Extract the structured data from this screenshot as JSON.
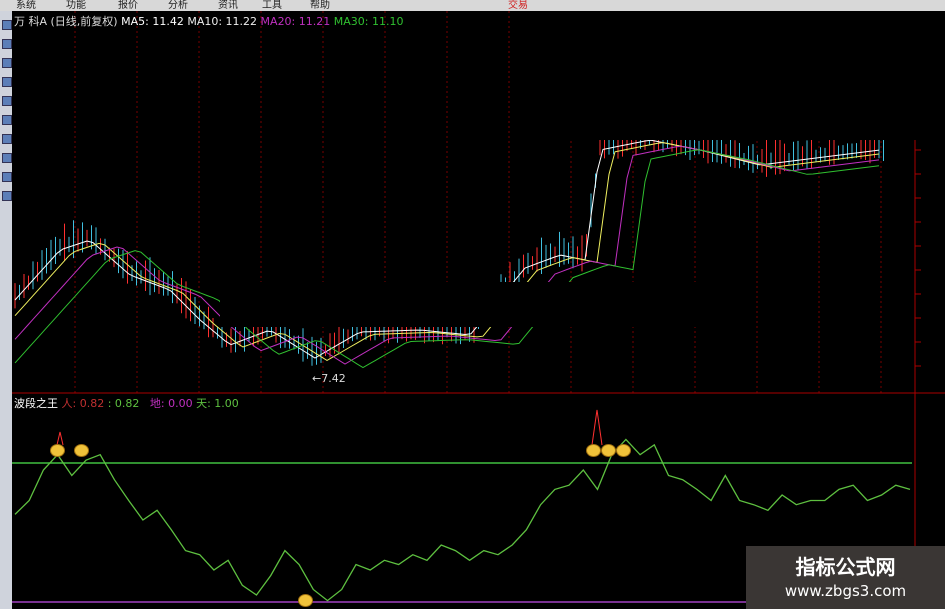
{
  "menu": [
    "系统",
    "功能",
    "报价",
    "分析",
    "资讯",
    "工具",
    "帮助"
  ],
  "menu_right": "交易",
  "main_header": {
    "title": "万 科A (日线,前复权)",
    "ma5": "MA5: 11.42",
    "ma10": "MA10: 11.22",
    "ma20": "MA20: 11.21",
    "ma30": "MA30: 11.10"
  },
  "low_label": "←7.42",
  "indicator": {
    "name": "波段之王",
    "ren_label": "人: 0.82",
    "value2": ": 0.82",
    "di_label": "地: 0.00",
    "tian_label": "天: 1.00"
  },
  "colors": {
    "ma5": "#ffffff",
    "ma10": "#f0f060",
    "ma20": "#c030c0",
    "ma30": "#30c030",
    "up": "#ff3030",
    "down": "#40c0e0",
    "osc": "#5ec040",
    "tian": "#40c040",
    "di": "#a040c0"
  },
  "chart_data": {
    "type": "line",
    "name": "波段之王",
    "levels": {
      "天": 1.0,
      "地": 0.0
    },
    "values": [
      0.63,
      0.73,
      0.95,
      1.06,
      0.91,
      1.02,
      1.06,
      0.88,
      0.73,
      0.59,
      0.66,
      0.52,
      0.37,
      0.34,
      0.23,
      0.3,
      0.12,
      0.05,
      0.19,
      0.37,
      0.27,
      0.09,
      0.01,
      0.09,
      0.27,
      0.23,
      0.3,
      0.27,
      0.34,
      0.3,
      0.41,
      0.37,
      0.3,
      0.37,
      0.34,
      0.41,
      0.52,
      0.7,
      0.81,
      0.84,
      0.95,
      0.81,
      1.06,
      1.17,
      1.06,
      1.13,
      0.91,
      0.88,
      0.81,
      0.73,
      0.91,
      0.73,
      0.7,
      0.66,
      0.77,
      0.7,
      0.73,
      0.73,
      0.81,
      0.84,
      0.73,
      0.77,
      0.84,
      0.81
    ]
  },
  "watermark": {
    "line1": "指标公式网",
    "line2": "www.zbgs3.com"
  }
}
